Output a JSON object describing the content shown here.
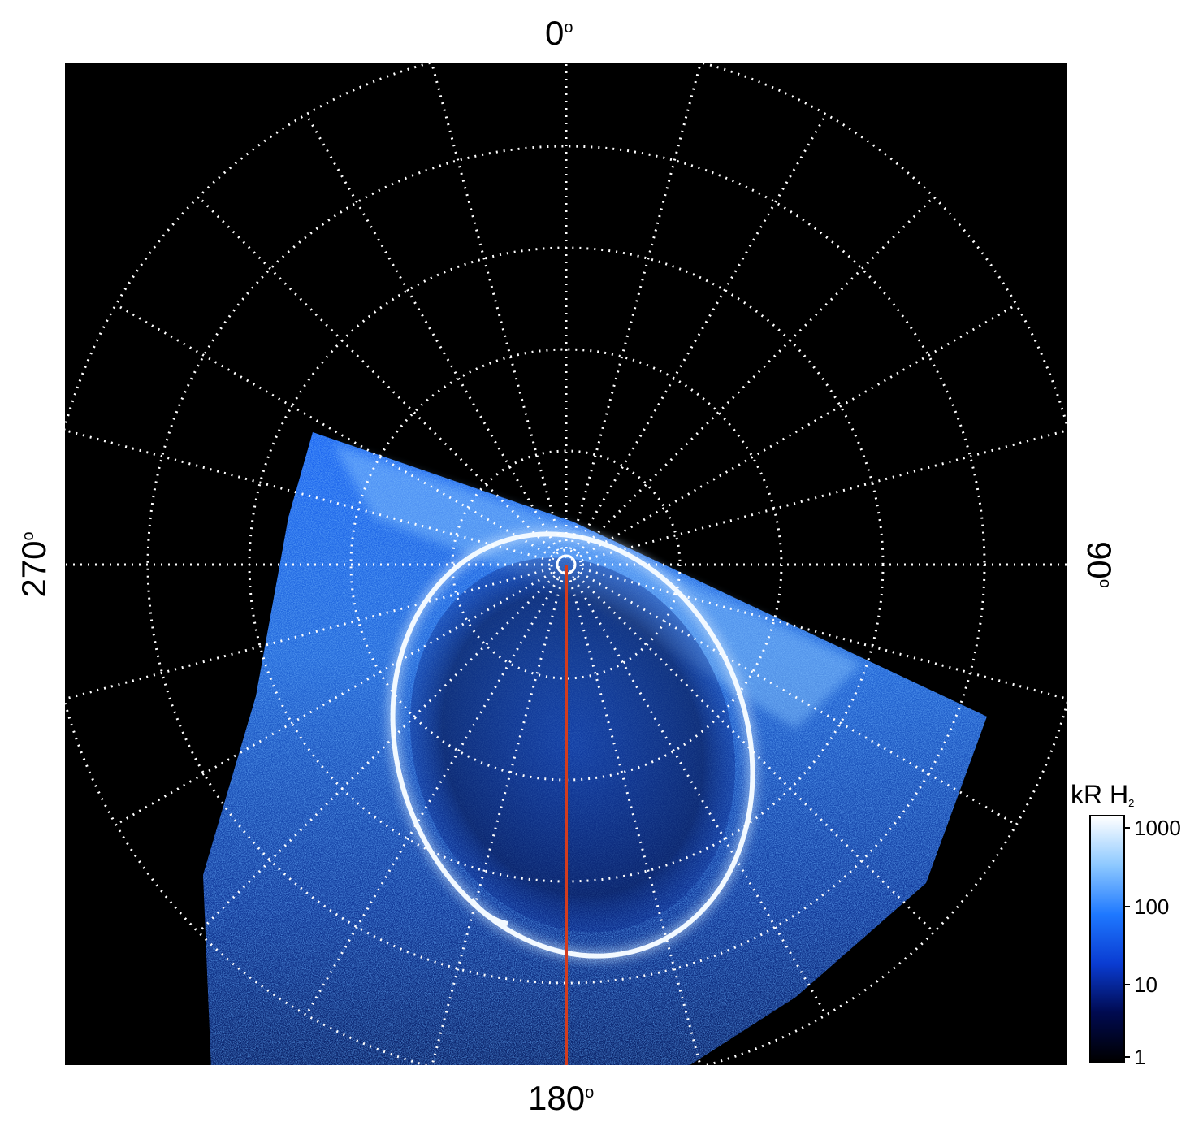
{
  "axis_labels": {
    "top": "0",
    "bottom": "180",
    "left": "270",
    "right": "90",
    "degree_mark": "o"
  },
  "colorbar": {
    "title": "kR H",
    "title_subscript": "2",
    "ticks": [
      "1000",
      "100",
      "10",
      "1"
    ],
    "scale": "log",
    "range": [
      1,
      1000
    ],
    "colors": [
      "#000000",
      "#000a50",
      "#0a3cd2",
      "#1e78ff",
      "#8cc8ff",
      "#ffffff"
    ]
  },
  "colors": {
    "background": "#000000",
    "grid": "#ffffff",
    "meridian_line": "#d23c1e",
    "aurora_bright": "#e8f4ff",
    "aurora_mid": "#2a7bff",
    "aurora_dim": "#0a2a8c"
  }
}
